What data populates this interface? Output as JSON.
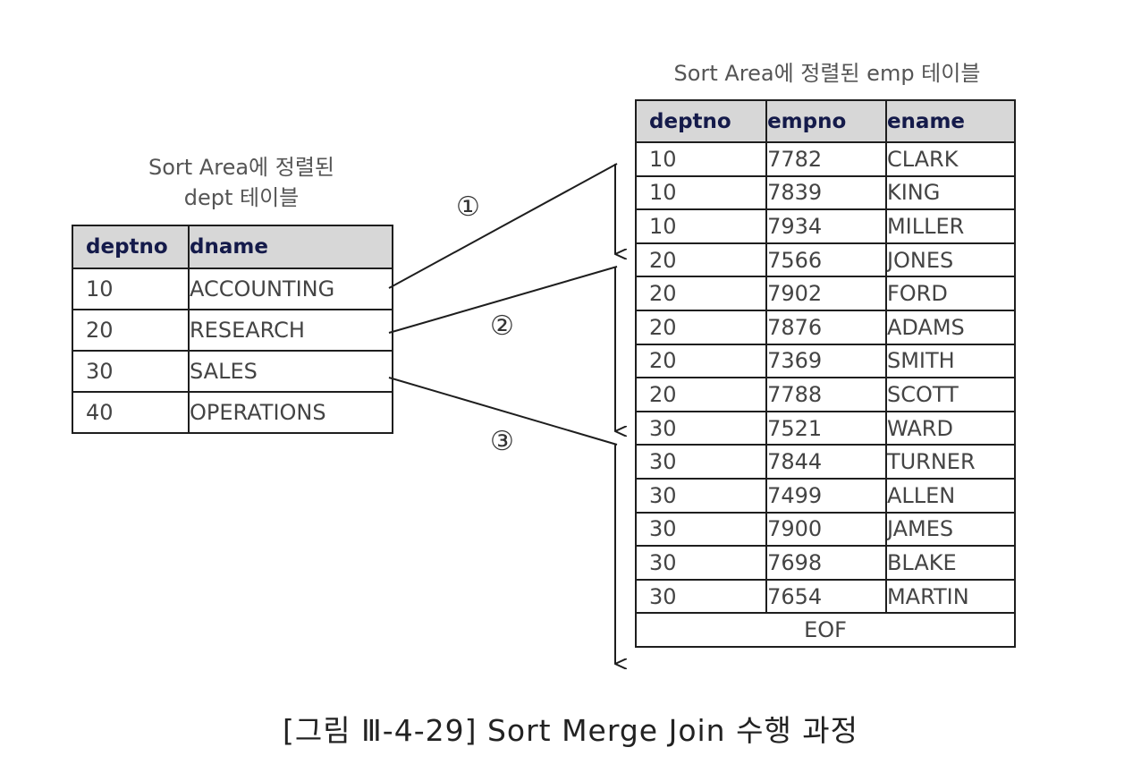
{
  "captions": {
    "emp_table": "Sort Area에 정렬된 emp 테이블",
    "dept_table_line1": "Sort Area에 정렬된",
    "dept_table_line2": "dept 테이블",
    "figure": "[그림 Ⅲ-4-29] Sort Merge Join 수행 과정"
  },
  "dept_table": {
    "headers": [
      "deptno",
      "dname"
    ],
    "rows": [
      [
        "10",
        "ACCOUNTING"
      ],
      [
        "20",
        "RESEARCH"
      ],
      [
        "30",
        "SALES"
      ],
      [
        "40",
        "OPERATIONS"
      ]
    ]
  },
  "emp_table": {
    "headers": [
      "deptno",
      "empno",
      "ename"
    ],
    "rows": [
      [
        "10",
        "7782",
        "CLARK"
      ],
      [
        "10",
        "7839",
        "KING"
      ],
      [
        "10",
        "7934",
        "MILLER"
      ],
      [
        "20",
        "7566",
        "JONES"
      ],
      [
        "20",
        "7902",
        "FORD"
      ],
      [
        "20",
        "7876",
        "ADAMS"
      ],
      [
        "20",
        "7369",
        "SMITH"
      ],
      [
        "20",
        "7788",
        "SCOTT"
      ],
      [
        "30",
        "7521",
        "WARD"
      ],
      [
        "30",
        "7844",
        "TURNER"
      ],
      [
        "30",
        "7499",
        "ALLEN"
      ],
      [
        "30",
        "7900",
        "JAMES"
      ],
      [
        "30",
        "7698",
        "BLAKE"
      ],
      [
        "30",
        "7654",
        "MARTIN"
      ]
    ],
    "end_marker": "EOF"
  },
  "steps": {
    "step1": "①",
    "step2": "②",
    "step3": "③"
  },
  "colors": {
    "header_bg": "#d7d7d7",
    "header_text": "#141a4a",
    "line": "#1e1e1e"
  }
}
